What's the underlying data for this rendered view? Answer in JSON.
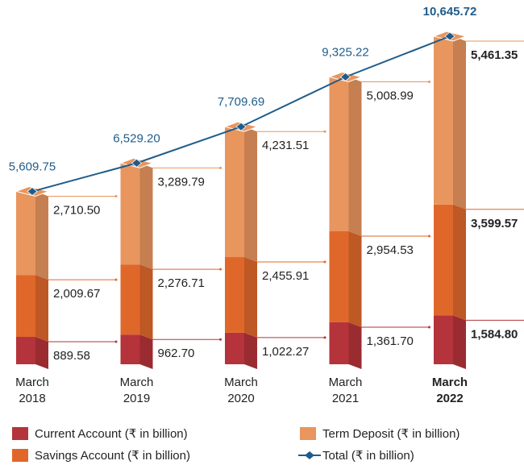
{
  "chart_data": {
    "type": "stacked_bar_line",
    "categories": [
      "March 2018",
      "March 2019",
      "March 2020",
      "March 2021",
      "March 2022"
    ],
    "series": [
      {
        "name": "Current Account (₹ in billion)",
        "color": "#b5333a",
        "values": [
          889.58,
          962.7,
          1022.27,
          1361.7,
          1584.8
        ],
        "value_labels": [
          "889.58",
          "962.70",
          "1,022.27",
          "1,361.70",
          "1,584.80"
        ]
      },
      {
        "name": "Savings Account (₹ in billion)",
        "color": "#e0672a",
        "values": [
          2009.67,
          2276.71,
          2455.91,
          2954.53,
          3599.57
        ],
        "value_labels": [
          "2,009.67",
          "2,276.71",
          "2,455.91",
          "2,954.53",
          "3,599.57"
        ]
      },
      {
        "name": "Term Deposit (₹ in billion)",
        "color": "#e8955e",
        "values": [
          2710.5,
          3289.79,
          4231.51,
          5008.99,
          5461.35
        ],
        "value_labels": [
          "2,710.50",
          "3,289.79",
          "4,231.51",
          "5,008.99",
          "5,461.35"
        ]
      },
      {
        "name": "Total (₹ in billion)",
        "color": "#1f5c8a",
        "type": "line",
        "values": [
          5609.75,
          6529.2,
          7709.69,
          9325.22,
          10645.72
        ],
        "value_labels": [
          "5,609.75",
          "6,529.20",
          "7,709.69",
          "9,325.22",
          "10,645.72"
        ]
      }
    ],
    "bold_last": true
  }
}
